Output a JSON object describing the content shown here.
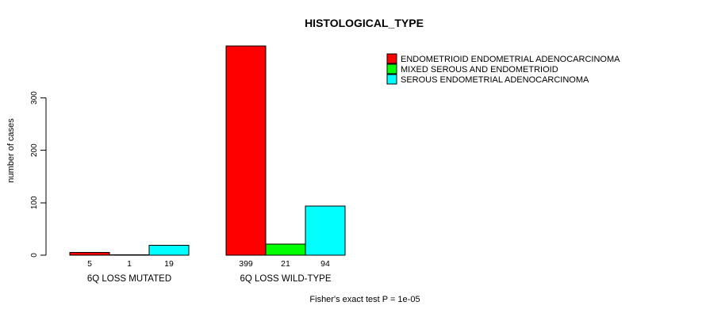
{
  "page": {
    "background": "#ffffff",
    "foreground": "#000000"
  },
  "chart_data": {
    "type": "bar",
    "title": "HISTOLOGICAL_TYPE",
    "ylabel": "number of cases",
    "xlabel": "",
    "caption": "Fisher's exact test P = 1e-05",
    "yticks": [
      0,
      100,
      200,
      300
    ],
    "ylim": [
      0,
      399
    ],
    "grid": false,
    "legend_position": "top-right",
    "bar_value_labels": true,
    "bar_border_color": "#000000",
    "categories": [
      "6Q LOSS MUTATED",
      "6Q LOSS WILD-TYPE"
    ],
    "series": [
      {
        "name": "ENDOMETRIOID ENDOMETRIAL ADENOCARCINOMA",
        "color": "#ff0000",
        "values": [
          5,
          399
        ]
      },
      {
        "name": "MIXED SEROUS AND ENDOMETRIOID",
        "color": "#00ff00",
        "values": [
          1,
          21
        ]
      },
      {
        "name": "SEROUS ENDOMETRIAL ADENOCARCINOMA",
        "color": "#00ffff",
        "values": [
          19,
          94
        ]
      }
    ]
  }
}
